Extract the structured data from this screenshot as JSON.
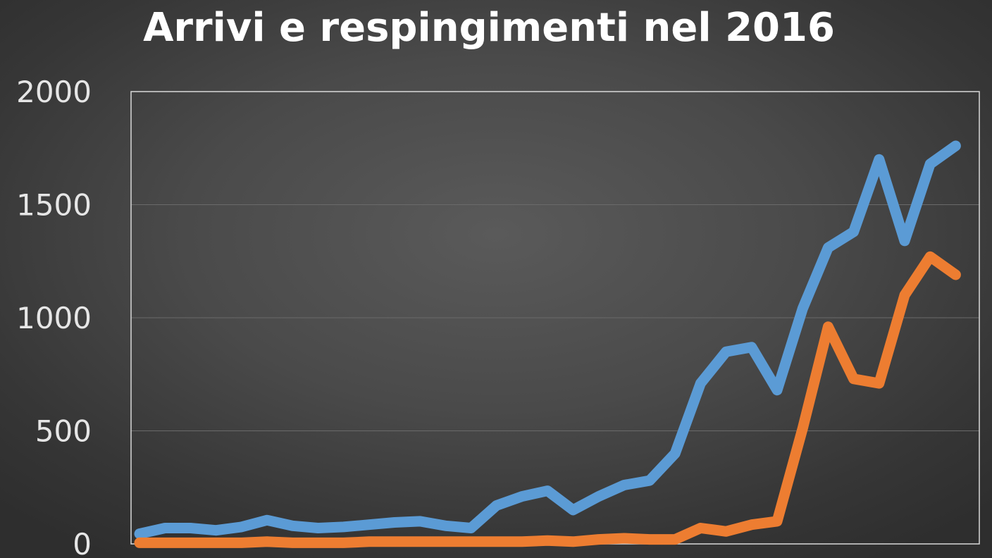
{
  "chart_data": {
    "type": "line",
    "title": "Arrivi e respingimenti nel 2016",
    "xlabel": "",
    "ylabel": "",
    "ylim": [
      0,
      2000
    ],
    "yticks": [
      0,
      500,
      1000,
      1500,
      2000
    ],
    "grid": true,
    "x": [
      1,
      2,
      3,
      4,
      5,
      6,
      7,
      8,
      9,
      10,
      11,
      12,
      13,
      14,
      15,
      16,
      17,
      18,
      19,
      20,
      21,
      22,
      23,
      24,
      25,
      26,
      27,
      28,
      29,
      30,
      31,
      32,
      33,
      34,
      35,
      36,
      37
    ],
    "series": [
      {
        "color": "#5b9bd5",
        "values": [
          45,
          70,
          70,
          60,
          75,
          105,
          80,
          70,
          75,
          85,
          95,
          100,
          80,
          70,
          170,
          210,
          235,
          150,
          210,
          260,
          280,
          400,
          710,
          850,
          870,
          680,
          1040,
          1310,
          1380,
          1700,
          1340,
          1680,
          1760,
          null,
          null,
          null,
          null
        ]
      },
      {
        "color": "#ed7d31",
        "values": [
          5,
          5,
          5,
          5,
          5,
          10,
          5,
          5,
          5,
          10,
          10,
          10,
          10,
          10,
          10,
          10,
          15,
          10,
          20,
          25,
          20,
          20,
          70,
          55,
          85,
          100,
          510,
          960,
          730,
          710,
          1100,
          1270,
          1190,
          null,
          null,
          null,
          null
        ]
      }
    ]
  }
}
